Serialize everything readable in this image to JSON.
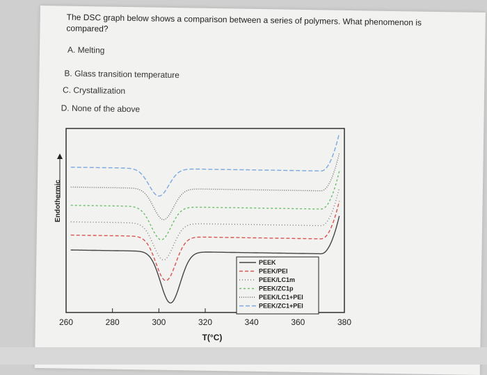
{
  "question": {
    "text": "The DSC graph below shows a comparison between a series of polymers. What phenomenon is compared?",
    "options": [
      {
        "letter": "A.",
        "label": "Melting"
      },
      {
        "letter": "B.",
        "label": "Glass transition temperature"
      },
      {
        "letter": "C.",
        "label": "Crystallization"
      },
      {
        "letter": "D.",
        "label": "None of the above"
      }
    ]
  },
  "chart_data": {
    "type": "line",
    "ylabel": "Endothermic",
    "xlabel": "T(°C)",
    "xlim": [
      260,
      380
    ],
    "xticks": [
      260,
      280,
      300,
      320,
      340,
      360,
      380
    ],
    "series": [
      {
        "name": "PEEK",
        "color": "#444444",
        "dash": "",
        "offset": 0.0,
        "depth": 0.28,
        "center": 305
      },
      {
        "name": "PEEK/PEI",
        "color": "#d9534f",
        "dash": "5,3",
        "offset": 0.09,
        "depth": 0.24,
        "center": 303
      },
      {
        "name": "PEEK/LC1m",
        "color": "#777777",
        "dash": "1,3",
        "offset": 0.17,
        "depth": 0.2,
        "center": 302
      },
      {
        "name": "PEEK/ZC1p",
        "color": "#6abf69",
        "dash": "3,3",
        "offset": 0.27,
        "depth": 0.18,
        "center": 301
      },
      {
        "name": "PEEK/LC1+PEI",
        "color": "#666666",
        "dash": "1,2",
        "offset": 0.38,
        "depth": 0.17,
        "center": 302
      },
      {
        "name": "PEEK/ZC1+PEI",
        "color": "#7aa7e0",
        "dash": "6,3",
        "offset": 0.5,
        "depth": 0.15,
        "center": 300
      }
    ]
  }
}
